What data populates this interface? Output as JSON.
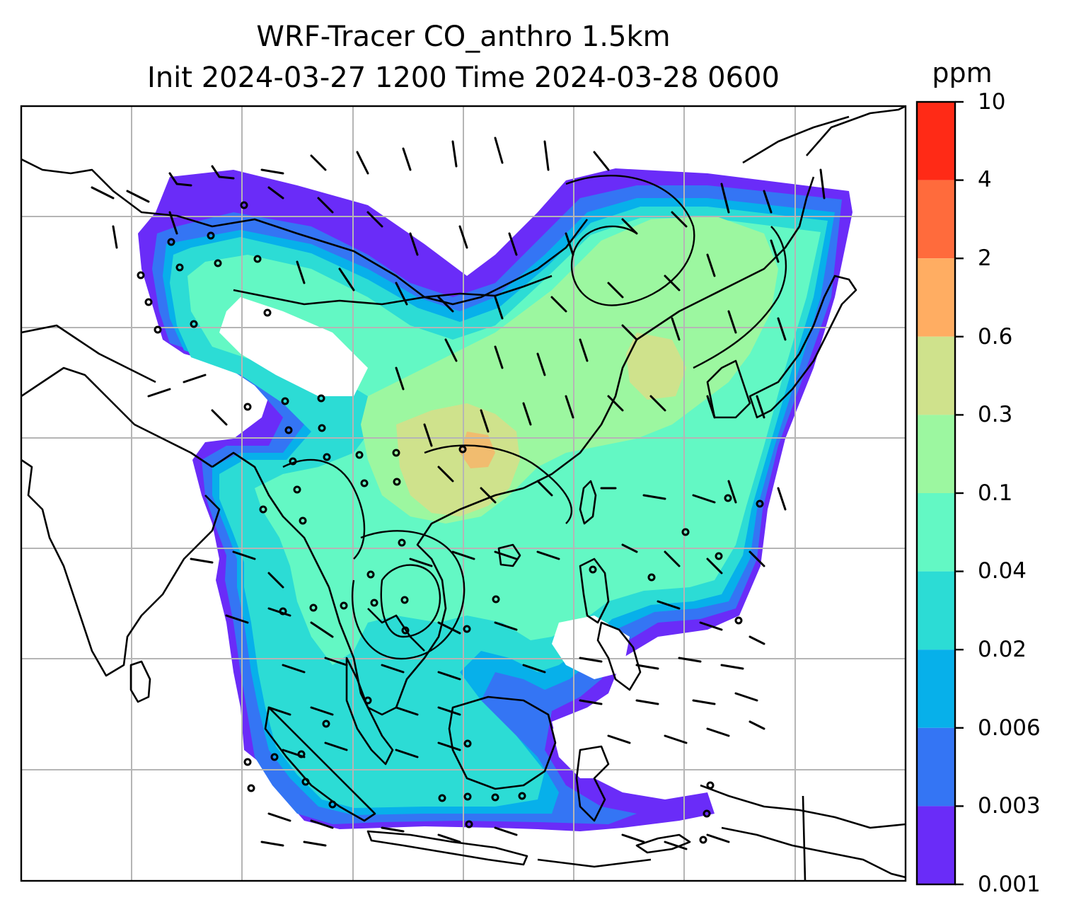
{
  "title": {
    "line1": "WRF-Tracer CO_anthro 1.5km",
    "line2": "Init 2024-03-27 1200 Time 2024-03-28 0600"
  },
  "colorbar": {
    "unit": "ppm",
    "levels": [
      "10",
      "4",
      "2",
      "0.6",
      "0.3",
      "0.1",
      "0.04",
      "0.02",
      "0.006",
      "0.003",
      "0.001"
    ],
    "colors": [
      "#ff2a16",
      "#ff6b3c",
      "#ffad62",
      "#cfe28c",
      "#9cf7a0",
      "#63f8c4",
      "#2cdcd5",
      "#07b0ea",
      "#3475f4",
      "#6a2cf8"
    ]
  },
  "map": {
    "gridlines": true,
    "coastlines": true,
    "wind_barbs": true,
    "field": "CO_anthro"
  }
}
